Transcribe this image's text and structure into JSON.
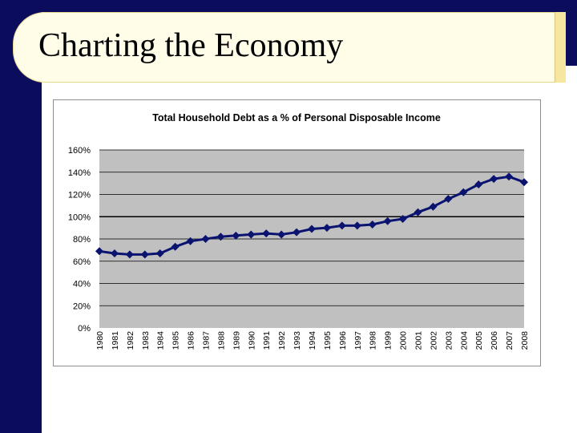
{
  "slide": {
    "title": "Charting the Economy"
  },
  "colors": {
    "navy": "#0c0c5c",
    "plot_bg": "#c0c0c0",
    "series": "#0a1470",
    "title_bg": "#fffde8"
  },
  "chart_data": {
    "type": "line",
    "title": "Total Household Debt as a % of Personal Disposable Income",
    "xlabel": "",
    "ylabel": "",
    "ylim": [
      0,
      160
    ],
    "yticks": [
      0,
      20,
      40,
      60,
      80,
      100,
      120,
      140,
      160
    ],
    "ytick_labels": [
      "0%",
      "20%",
      "40%",
      "60%",
      "80%",
      "100%",
      "120%",
      "140%",
      "160%"
    ],
    "reference_line": 100,
    "categories": [
      "1980",
      "1981",
      "1982",
      "1983",
      "1984",
      "1985",
      "1986",
      "1987",
      "1988",
      "1989",
      "1990",
      "1991",
      "1992",
      "1993",
      "1994",
      "1995",
      "1996",
      "1997",
      "1998",
      "1999",
      "2000",
      "2001",
      "2002",
      "2003",
      "2004",
      "2005",
      "2006",
      "2007",
      "2008"
    ],
    "series": [
      {
        "name": "Total Household Debt as a % of Personal Disposable Income",
        "values": [
          69,
          67,
          66,
          66,
          67,
          73,
          78,
          80,
          82,
          83,
          84,
          85,
          84,
          86,
          89,
          90,
          92,
          92,
          93,
          96,
          98,
          104,
          109,
          116,
          122,
          129,
          134,
          136,
          131
        ]
      }
    ]
  }
}
